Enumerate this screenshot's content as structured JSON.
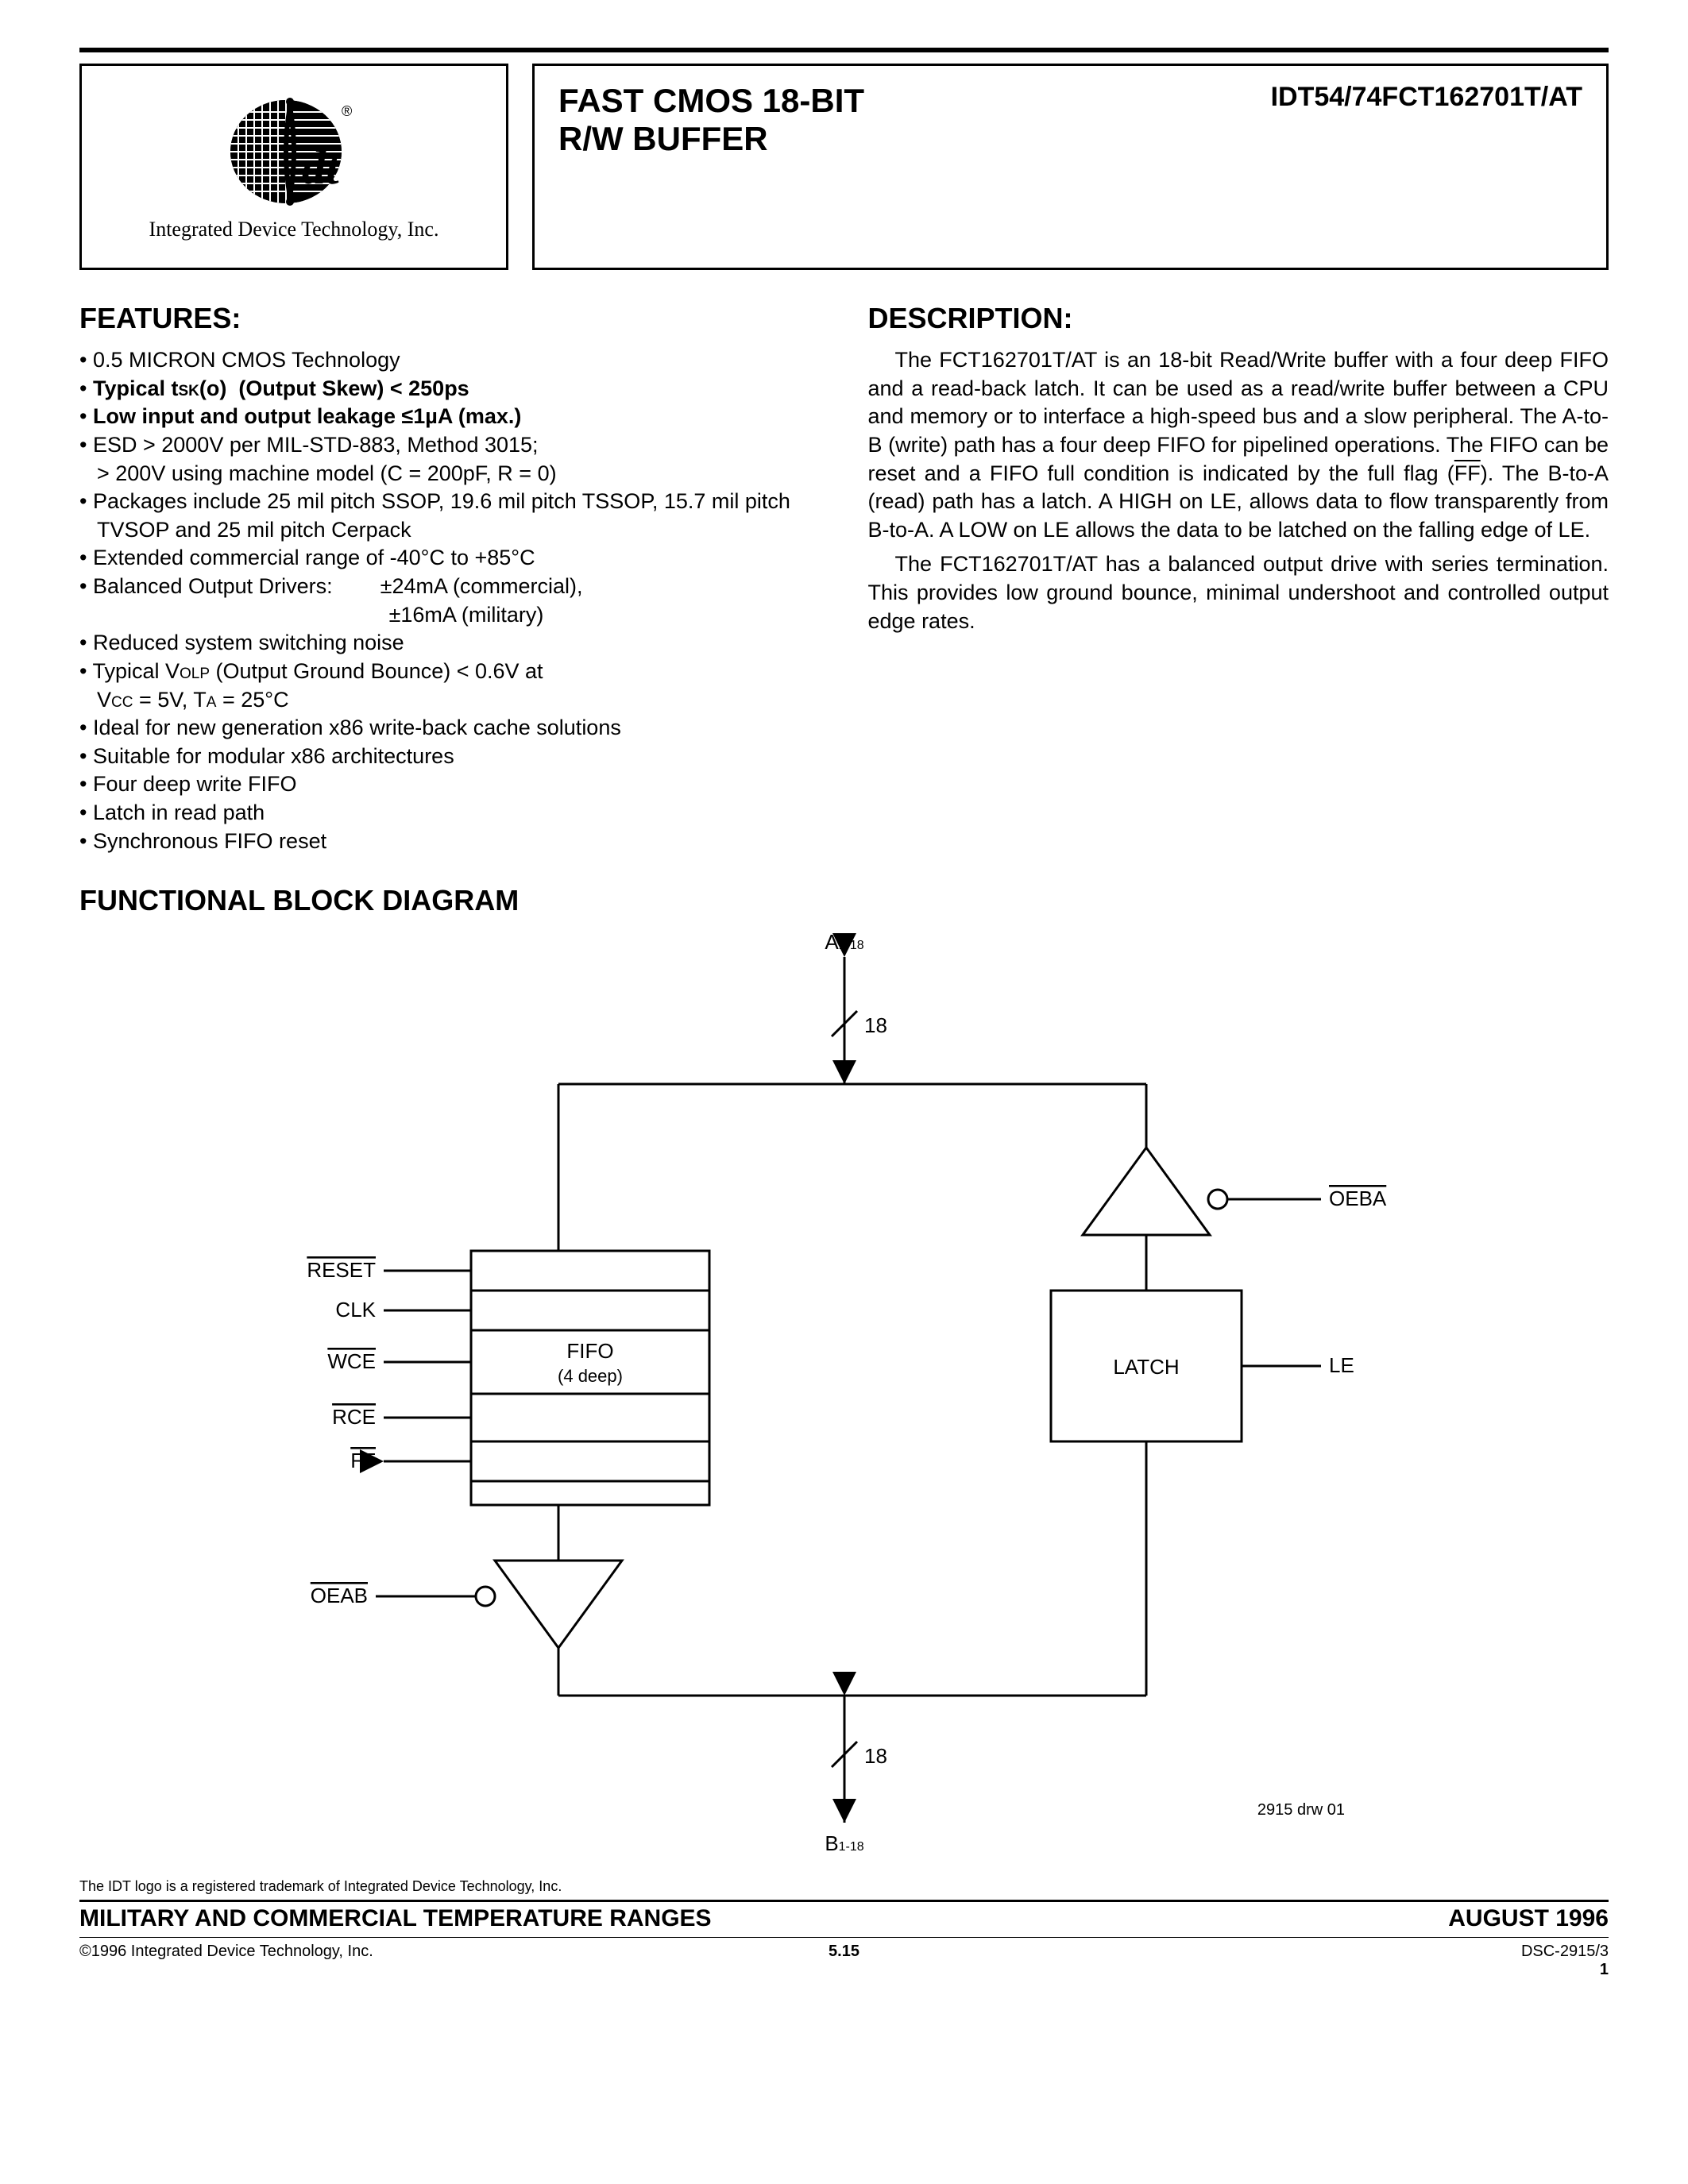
{
  "header": {
    "company": "Integrated Device Technology, Inc.",
    "title_line1": "FAST CMOS 18-BIT",
    "title_line2": "R/W BUFFER",
    "part_number": "IDT54/74FCT162701T/AT"
  },
  "features": {
    "heading": "FEATURES:",
    "items_html": [
      "0.5 MICRON CMOS Technology",
      "<b>Typical t<span class='sc'>sk</span>(o)&nbsp;&nbsp;(Output Skew) &lt; 250ps</b>",
      "<b>Low input and output leakage ≤1µA (max.)</b>",
      "ESD &gt; 2000V per MIL-STD-883, Method 3015;<br>&gt; 200V using machine model (C = 200pF, R = 0)",
      "Packages include 25 mil pitch SSOP, 19.6 mil pitch TSSOP, 15.7 mil pitch TVSOP and 25 mil pitch Cerpack",
      "Extended commercial range of -40°C to +85°C",
      "Balanced Output Drivers:&nbsp;&nbsp;&nbsp;&nbsp;&nbsp;&nbsp;&nbsp;&nbsp;±24mA (commercial),<br>&nbsp;&nbsp;&nbsp;&nbsp;&nbsp;&nbsp;&nbsp;&nbsp;&nbsp;&nbsp;&nbsp;&nbsp;&nbsp;&nbsp;&nbsp;&nbsp;&nbsp;&nbsp;&nbsp;&nbsp;&nbsp;&nbsp;&nbsp;&nbsp;&nbsp;&nbsp;&nbsp;&nbsp;&nbsp;&nbsp;&nbsp;&nbsp;&nbsp;&nbsp;&nbsp;&nbsp;&nbsp;&nbsp;&nbsp;&nbsp;&nbsp;&nbsp;&nbsp;&nbsp;&nbsp;&nbsp;&nbsp;&nbsp;&nbsp;±16mA (military)",
      "Reduced system switching noise",
      "Typical V<span class='sc'>olp</span> (Output Ground Bounce) &lt; 0.6V at<br>V<span class='sc'>cc</span> = 5V, T<span class='sc'>a</span> = 25°C",
      "Ideal for new generation x86 write-back cache solutions",
      "Suitable for modular x86 architectures",
      "Four deep write FIFO",
      "Latch in read path",
      "Synchronous FIFO reset"
    ]
  },
  "description": {
    "heading": "DESCRIPTION:",
    "para1_html": "The FCT162701T/AT is an 18-bit Read/Write buffer with a four deep FIFO and a read-back latch. It can be used as a read/write buffer between a CPU and memory or to interface a high-speed bus and a slow peripheral. The A-to-B (write) path has a four deep FIFO for pipelined operations. The FIFO can be reset and a FIFO full condition is indicated by the full flag (<span class='ov'>FF</span>). The B-to-A (read) path has a latch. A HIGH on LE, allows data to flow transparently from B-to-A. A LOW on LE allows the data to be latched on the falling edge of LE.",
    "para2_html": "The FCT162701T/AT has a balanced output drive with series termination. This provides low ground bounce, minimal undershoot and controlled output edge rates."
  },
  "block_diagram": {
    "heading": "FUNCTIONAL BLOCK DIAGRAM",
    "labels": {
      "a_port": "A",
      "a_sub": "1-18",
      "b_port": "B",
      "b_sub": "1-18",
      "bus_width": "18",
      "fifo": "FIFO",
      "fifo_depth": "(4 deep)",
      "latch": "LATCH",
      "reset": "RESET",
      "clk": "CLK",
      "wce": "WCE",
      "rce": "RCE",
      "ff": "FF",
      "oeab": "OEAB",
      "oeba": "OEBA",
      "le": "LE",
      "drawing_ref": "2915 drw 01"
    },
    "style": {
      "stroke": "#000000",
      "stroke_width": 3,
      "font_size_label": 26,
      "font_size_sub": 16
    }
  },
  "footer": {
    "trademark": "The IDT logo is a registered trademark of Integrated Device Technology, Inc.",
    "range": "MILITARY AND COMMERCIAL TEMPERATURE RANGES",
    "date": "AUGUST 1996",
    "copyright": "©1996 Integrated Device Technology, Inc.",
    "page_section": "5.15",
    "doc_code": "DSC-2915/3",
    "page_num": "1"
  }
}
